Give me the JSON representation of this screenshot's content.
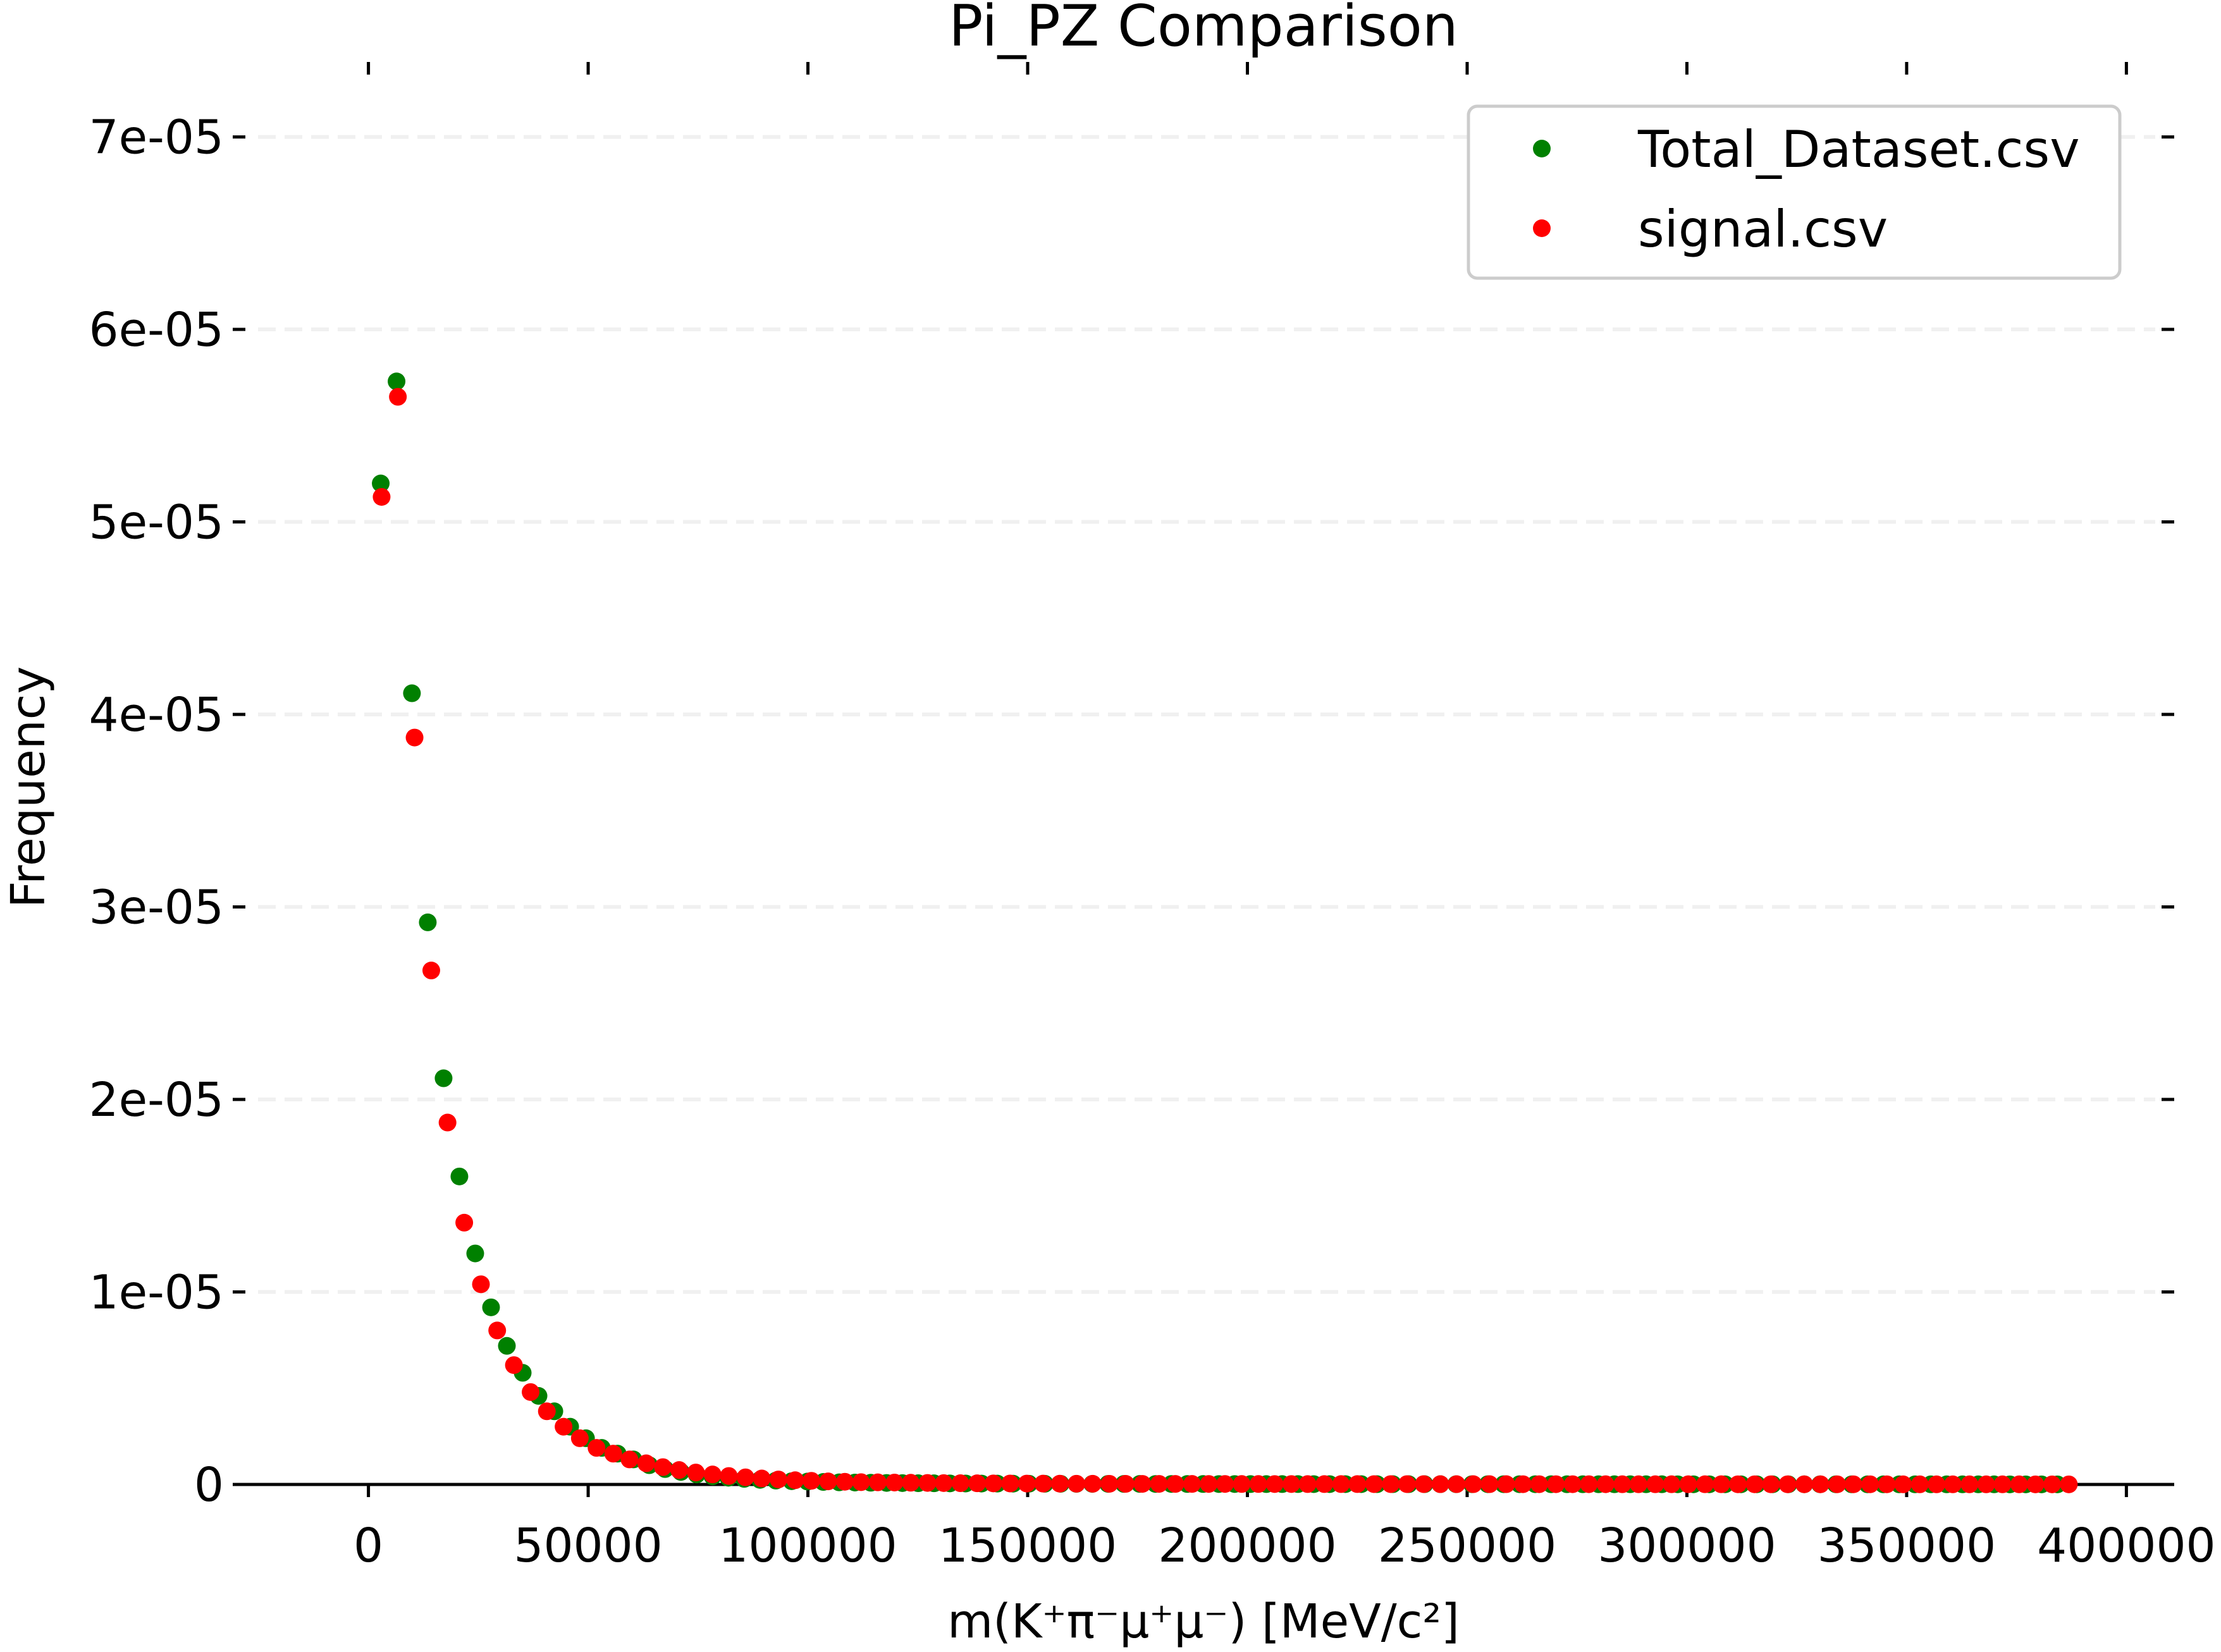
{
  "chart_data": {
    "type": "scatter",
    "title": "Pi_PZ Comparison",
    "xlabel": "m(K⁺π⁻μ⁺μ⁻) [MeV/c²]",
    "ylabel": "Frequency",
    "xlim": [
      -28000,
      408000
    ],
    "ylim": [
      0,
      7.35e-05
    ],
    "xticks": [
      0,
      50000,
      100000,
      150000,
      200000,
      250000,
      300000,
      350000,
      400000
    ],
    "xtick_labels": [
      "0",
      "50000",
      "100000",
      "150000",
      "200000",
      "250000",
      "300000",
      "350000",
      "400000"
    ],
    "yticks": [
      0,
      1e-05,
      2e-05,
      3e-05,
      4e-05,
      5e-05,
      6e-05,
      7e-05
    ],
    "ytick_labels": [
      "0",
      "1e-05",
      "2e-05",
      "3e-05",
      "4e-05",
      "5e-05",
      "6e-05",
      "7e-05"
    ],
    "grid": "horizontal dashed",
    "legend_position": "top-right",
    "series": [
      {
        "name": "Total_Dataset.csv",
        "color": "#008000",
        "x": [
          2800,
          6400,
          9900,
          13500,
          17100,
          20700,
          24300,
          27900,
          31500,
          35100,
          38700,
          42300,
          45900,
          49500,
          53100,
          56700,
          60300,
          63900,
          67500,
          71100,
          74700,
          78300,
          81900,
          85500,
          89100,
          92700,
          96300,
          99900,
          103500,
          107100,
          110700,
          114300,
          117900,
          121500,
          125100,
          128700,
          132300,
          135900,
          139500,
          143100,
          146700,
          150300,
          153900,
          157500,
          161100,
          164700,
          168300,
          171900,
          175500,
          179100,
          182700,
          186300,
          189900,
          193500,
          197100,
          200700,
          204300,
          207900,
          211500,
          215100,
          218700,
          222300,
          225900,
          229500,
          233100,
          236700,
          240300,
          243900,
          247500,
          251100,
          254700,
          258300,
          261900,
          265500,
          269100,
          272700,
          276300,
          279900,
          283500,
          287100,
          290700,
          294300,
          297900,
          301500,
          305100,
          308700,
          312300,
          315900,
          319500,
          323100,
          326700,
          330300,
          333900,
          337500,
          341100,
          344700,
          348300,
          351900,
          355500,
          359100,
          362700,
          366300,
          369900,
          373500,
          377100,
          380700,
          384300
        ],
        "y": [
          5.2e-05,
          5.73e-05,
          4.11e-05,
          2.92e-05,
          2.11e-05,
          1.6e-05,
          1.2e-05,
          9.2e-06,
          7.2e-06,
          5.8e-06,
          4.6e-06,
          3.8e-06,
          3e-06,
          2.4e-06,
          1.9e-06,
          1.6e-06,
          1.3e-06,
          1e-06,
          8e-07,
          6.5e-07,
          5.2e-07,
          4.2e-07,
          3.5e-07,
          2.9e-07,
          2.4e-07,
          2e-07,
          1.7e-07,
          1.5e-07,
          1.3e-07,
          1.1e-07,
          1e-07,
          9e-08,
          8e-08,
          7e-08,
          6.5e-08,
          6e-08,
          5.5e-08,
          5e-08,
          4.7e-08,
          4.4e-08,
          4.1e-08,
          3.8e-08,
          3.6e-08,
          3.4e-08,
          3.2e-08,
          3e-08,
          2.9e-08,
          2.8e-08,
          2.7e-08,
          2.6e-08,
          2.5e-08,
          2.4e-08,
          2.3e-08,
          2.2e-08,
          2.1e-08,
          2e-08,
          2e-08,
          1.9e-08,
          1.9e-08,
          1.8e-08,
          1.8e-08,
          1.7e-08,
          1.7e-08,
          1.6e-08,
          1.6e-08,
          1.5e-08,
          1.5e-08,
          1.5e-08,
          1.4e-08,
          1.4e-08,
          1.4e-08,
          1.3e-08,
          1.3e-08,
          1.3e-08,
          1.2e-08,
          1.2e-08,
          1.2e-08,
          1.2e-08,
          1.1e-08,
          1.1e-08,
          1.1e-08,
          1.1e-08,
          1e-08,
          1e-08,
          1e-08,
          1e-08,
          9.5e-09,
          9.5e-09,
          9e-09,
          9e-09,
          9e-09,
          8.5e-09,
          8.5e-09,
          8e-09,
          8e-09,
          8e-09,
          7.5e-09,
          7.5e-09,
          7e-09,
          7e-09,
          7e-09,
          6.5e-09,
          6.5e-09,
          6e-09,
          6e-09,
          6e-09,
          5.5e-09
        ]
      },
      {
        "name": "signal.csv",
        "color": "#ff0000",
        "x": [
          3000,
          6700,
          10500,
          14300,
          18000,
          21800,
          25600,
          29300,
          33100,
          36900,
          40600,
          44400,
          48100,
          51900,
          55700,
          59400,
          63200,
          67000,
          70700,
          74500,
          78300,
          82000,
          85800,
          89500,
          93300,
          97100,
          100800,
          104600,
          108400,
          112100,
          115900,
          119700,
          123400,
          127200,
          130900,
          134700,
          138500,
          142200,
          146000,
          149800,
          153500,
          157300,
          161100,
          164800,
          168600,
          172300,
          176100,
          179900,
          183600,
          187400,
          191200,
          194900,
          198700,
          202500,
          206200,
          210000,
          213700,
          217500,
          221300,
          225000,
          228800,
          232600,
          236300,
          240100,
          243900,
          247600,
          251400,
          255100,
          258900,
          262700,
          266400,
          270200,
          274000,
          277700,
          281500,
          285300,
          289000,
          292800,
          296500,
          300300,
          304100,
          307800,
          311600,
          315400,
          319100,
          322900,
          326700,
          330400,
          334200,
          337900,
          341700,
          345500,
          349200,
          353000,
          356800,
          360500,
          364300,
          368100,
          371800,
          375600,
          379300,
          383100,
          386900
        ],
        "y": [
          5.13e-05,
          5.65e-05,
          3.88e-05,
          2.67e-05,
          1.88e-05,
          1.36e-05,
          1.04e-05,
          8e-06,
          6.2e-06,
          4.8e-06,
          3.8e-06,
          3e-06,
          2.4e-06,
          1.9e-06,
          1.6e-06,
          1.3e-06,
          1.1e-06,
          9e-07,
          7.5e-07,
          6.2e-07,
          5.2e-07,
          4.4e-07,
          3.7e-07,
          3.1e-07,
          2.6e-07,
          2.2e-07,
          1.9e-07,
          1.6e-07,
          1.4e-07,
          1.2e-07,
          1.1e-07,
          1e-07,
          9e-08,
          8e-08,
          7e-08,
          6.5e-08,
          6e-08,
          5.5e-08,
          5e-08,
          4.7e-08,
          4.4e-08,
          4.1e-08,
          3.8e-08,
          3.6e-08,
          3.4e-08,
          3.2e-08,
          3e-08,
          2.9e-08,
          2.8e-08,
          2.7e-08,
          2.6e-08,
          2.5e-08,
          2.4e-08,
          2.3e-08,
          2.2e-08,
          2.1e-08,
          2e-08,
          2e-08,
          1.9e-08,
          1.9e-08,
          1.8e-08,
          1.8e-08,
          1.7e-08,
          1.7e-08,
          1.6e-08,
          1.6e-08,
          1.5e-08,
          1.5e-08,
          1.5e-08,
          1.4e-08,
          1.4e-08,
          1.4e-08,
          1.3e-08,
          1.3e-08,
          1.3e-08,
          1.2e-08,
          1.2e-08,
          1.2e-08,
          1.2e-08,
          1.1e-08,
          1.1e-08,
          1.1e-08,
          1e-08,
          1e-08,
          1e-08,
          1e-08,
          9.5e-09,
          9.5e-09,
          9e-09,
          9e-09,
          8.5e-09,
          8.5e-09,
          8e-09,
          8e-09,
          7.5e-09,
          7.5e-09,
          7e-09,
          7e-09,
          6.5e-09,
          6.5e-09,
          6e-09,
          6e-09,
          5.5e-09
        ]
      }
    ]
  }
}
